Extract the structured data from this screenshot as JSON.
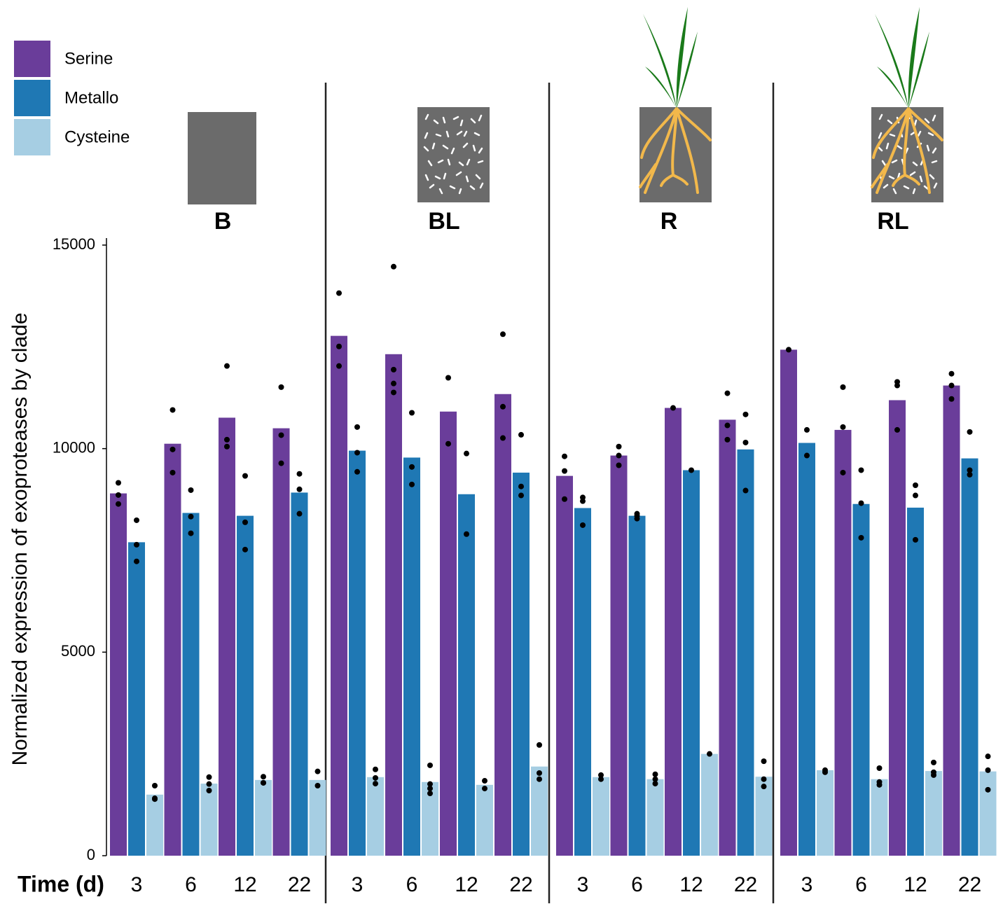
{
  "chart_data": {
    "type": "bar",
    "y_label": "Normalized expression of exoproteases by clade",
    "x_label": "Time (d)",
    "ylim": [
      0,
      15000
    ],
    "yticks": [
      0,
      5000,
      10000,
      15000
    ],
    "categories": [
      "3",
      "6",
      "12",
      "22"
    ],
    "series": [
      {
        "name": "Serine",
        "color": "#6a3d9a"
      },
      {
        "name": "Metallo",
        "color": "#1f78b4"
      },
      {
        "name": "Cysteine",
        "color": "#a6cee3"
      }
    ],
    "facets": [
      {
        "label": "B",
        "values": [
          [
            8900,
            10120,
            10760,
            10500
          ],
          [
            7700,
            8420,
            8350,
            8920
          ],
          [
            1500,
            1770,
            1860,
            1860
          ]
        ],
        "points": [
          [
            [
              9160,
              8860,
              8640
            ],
            [
              10950,
              9980,
              9410
            ],
            [
              12030,
              10220,
              10050
            ],
            [
              11510,
              10330,
              9640
            ]
          ],
          [
            [
              8240,
              7640,
              7230
            ],
            [
              8980,
              8330,
              7920
            ],
            [
              9330,
              8190,
              7520
            ],
            [
              9380,
              9000,
              8400
            ]
          ],
          [
            [
              1720,
              1410,
              1390
            ],
            [
              1930,
              1760,
              1600
            ],
            [
              1940,
              1790,
              1790
            ],
            [
              2070,
              1720
            ]
          ]
        ]
      },
      {
        "label": "BL",
        "values": [
          [
            12770,
            12320,
            10910,
            11340
          ],
          [
            9950,
            9780,
            8880,
            9410
          ],
          [
            1930,
            1810,
            1740,
            2190
          ]
        ],
        "points": [
          [
            [
              13820,
              12510,
              12030
            ],
            [
              14470,
              11940,
              11600,
              11380
            ],
            [
              11740,
              10120
            ],
            [
              12810,
              11030,
              10260
            ]
          ],
          [
            [
              10530,
              9900,
              9430
            ],
            [
              10880,
              9550,
              9120
            ],
            [
              9880,
              7900
            ],
            [
              10340,
              9070,
              8850
            ]
          ],
          [
            [
              2120,
              1910,
              1770
            ],
            [
              2220,
              1760,
              1650,
              1530
            ],
            [
              1840,
              1650
            ],
            [
              2720,
              2030,
              1880
            ]
          ]
        ]
      },
      {
        "label": "R",
        "values": [
          [
            9330,
            9830,
            11000,
            10710
          ],
          [
            8540,
            8350,
            9470,
            9980
          ],
          [
            1930,
            1880,
            2500,
            1940
          ]
        ],
        "points": [
          [
            [
              9810,
              9450,
              8760
            ],
            [
              10050,
              9830,
              9590
            ],
            [
              11000
            ],
            [
              11360,
              10570,
              10220
            ]
          ],
          [
            [
              8800,
              8710,
              8120
            ],
            [
              8400,
              8350,
              8280
            ],
            [
              9470
            ],
            [
              10840,
              10150,
              8970
            ]
          ],
          [
            [
              1980,
              1880
            ],
            [
              2000,
              1880,
              1770
            ],
            [
              2500
            ],
            [
              2320,
              1880,
              1700
            ]
          ]
        ]
      },
      {
        "label": "RL",
        "values": [
          [
            12430,
            10460,
            11190,
            11550
          ],
          [
            10140,
            8640,
            8550,
            9760
          ],
          [
            2100,
            1880,
            2080,
            2070
          ]
        ],
        "points": [
          [
            [
              12430
            ],
            [
              11510,
              10530,
              9410
            ],
            [
              11640,
              11550,
              10460
            ],
            [
              11840,
              11550,
              11220
            ]
          ],
          [
            [
              10460,
              9830
            ],
            [
              9470,
              8660,
              7810
            ],
            [
              9100,
              8850,
              7760
            ],
            [
              10410,
              9470,
              9360
            ]
          ],
          [
            [
              2100,
              2050
            ],
            [
              2150,
              1810,
              1740
            ],
            [
              2290,
              2050,
              1980
            ],
            [
              2440,
              2100,
              1620
            ]
          ]
        ]
      }
    ]
  }
}
